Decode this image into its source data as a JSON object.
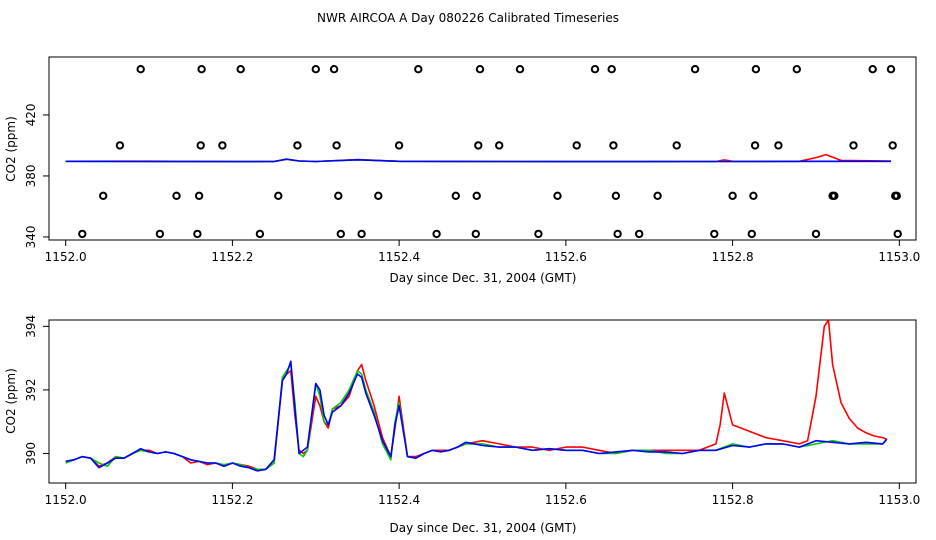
{
  "title": "NWR AIRCOA A  Day 080226  Calibrated Timeseries",
  "colors": {
    "red": "#ff0000",
    "green": "#00cc00",
    "blue": "#0000ff",
    "black": "#000000"
  },
  "chart_data": [
    {
      "type": "scatter",
      "xlabel": "Day since Dec. 31, 2004 (GMT)",
      "ylabel": "CO2 (ppm)",
      "xlim": [
        1151.98,
        1153.02
      ],
      "ylim": [
        338,
        458
      ],
      "xticks": [
        1152.0,
        1152.2,
        1152.4,
        1152.6,
        1152.8,
        1153.0
      ],
      "xtick_labels": [
        "1152.0",
        "1152.2",
        "1152.4",
        "1152.6",
        "1152.8",
        "1153.0"
      ],
      "yticks": [
        340,
        380,
        420
      ],
      "ytick_labels": [
        "340",
        "380",
        "420"
      ],
      "grid": false,
      "series": [
        {
          "color": "black",
          "marker": "circle",
          "points": [
            [
              1152.02,
              342
            ],
            [
              1152.045,
              367
            ],
            [
              1152.065,
              400
            ],
            [
              1152.09,
              450
            ],
            [
              1152.113,
              342
            ],
            [
              1152.133,
              367
            ],
            [
              1152.158,
              342
            ],
            [
              1152.16,
              367
            ],
            [
              1152.162,
              400
            ],
            [
              1152.163,
              450
            ],
            [
              1152.188,
              400
            ],
            [
              1152.21,
              450
            ],
            [
              1152.233,
              342
            ],
            [
              1152.255,
              367
            ],
            [
              1152.278,
              400
            ],
            [
              1152.3,
              450
            ],
            [
              1152.322,
              450
            ],
            [
              1152.325,
              400
            ],
            [
              1152.327,
              367
            ],
            [
              1152.33,
              342
            ],
            [
              1152.355,
              342
            ],
            [
              1152.375,
              367
            ],
            [
              1152.4,
              400
            ],
            [
              1152.423,
              450
            ],
            [
              1152.445,
              342
            ],
            [
              1152.468,
              367
            ],
            [
              1152.492,
              342
            ],
            [
              1152.493,
              367
            ],
            [
              1152.495,
              400
            ],
            [
              1152.497,
              450
            ],
            [
              1152.52,
              400
            ],
            [
              1152.545,
              450
            ],
            [
              1152.567,
              342
            ],
            [
              1152.59,
              367
            ],
            [
              1152.613,
              400
            ],
            [
              1152.635,
              450
            ],
            [
              1152.655,
              450
            ],
            [
              1152.657,
              400
            ],
            [
              1152.66,
              367
            ],
            [
              1152.662,
              342
            ],
            [
              1152.688,
              342
            ],
            [
              1152.71,
              367
            ],
            [
              1152.733,
              400
            ],
            [
              1152.755,
              450
            ],
            [
              1152.778,
              342
            ],
            [
              1152.8,
              367
            ],
            [
              1152.823,
              342
            ],
            [
              1152.825,
              367
            ],
            [
              1152.827,
              400
            ],
            [
              1152.828,
              450
            ],
            [
              1152.855,
              400
            ],
            [
              1152.877,
              450
            ],
            [
              1152.9,
              342
            ],
            [
              1152.92,
              367
            ],
            [
              1152.922,
              367
            ],
            [
              1152.945,
              400
            ],
            [
              1152.968,
              450
            ],
            [
              1152.99,
              450
            ],
            [
              1152.992,
              400
            ],
            [
              1152.995,
              367
            ],
            [
              1152.997,
              367
            ],
            [
              1152.998,
              342
            ]
          ]
        },
        {
          "color": "red",
          "marker": "line",
          "x": [
            1152.0,
            1152.1,
            1152.2,
            1152.25,
            1152.265,
            1152.28,
            1152.3,
            1152.35,
            1152.4,
            1152.5,
            1152.6,
            1152.7,
            1152.78,
            1152.79,
            1152.8,
            1152.88,
            1152.9,
            1152.912,
            1152.93,
            1152.99
          ],
          "y": [
            389.6,
            389.7,
            389.4,
            389.5,
            391.0,
            389.8,
            389.5,
            390.8,
            389.6,
            389.4,
            389.4,
            389.5,
            389.5,
            390.5,
            389.6,
            389.6,
            392.0,
            394.0,
            390.2,
            389.8
          ]
        },
        {
          "color": "green",
          "marker": "line",
          "x": [
            1152.0,
            1152.2,
            1152.25,
            1152.265,
            1152.28,
            1152.3,
            1152.35,
            1152.4,
            1152.6,
            1152.8,
            1152.9,
            1152.99
          ],
          "y": [
            389.6,
            389.4,
            389.5,
            391.0,
            389.8,
            389.5,
            390.6,
            389.6,
            389.4,
            389.5,
            389.6,
            389.6
          ]
        },
        {
          "color": "blue",
          "marker": "line",
          "x": [
            1152.0,
            1152.2,
            1152.25,
            1152.265,
            1152.28,
            1152.3,
            1152.35,
            1152.4,
            1152.6,
            1152.8,
            1152.9,
            1152.99
          ],
          "y": [
            389.6,
            389.4,
            389.5,
            391.0,
            389.8,
            389.5,
            390.6,
            389.6,
            389.4,
            389.5,
            389.6,
            389.6
          ]
        }
      ]
    },
    {
      "type": "line",
      "xlabel": "Day since Dec. 31, 2004 (GMT)",
      "ylabel": "CO2 (ppm)",
      "xlim": [
        1151.98,
        1153.02
      ],
      "ylim": [
        389.07,
        394.2
      ],
      "xticks": [
        1152.0,
        1152.2,
        1152.4,
        1152.6,
        1152.8,
        1153.0
      ],
      "xtick_labels": [
        "1152.0",
        "1152.2",
        "1152.4",
        "1152.6",
        "1152.8",
        "1153.0"
      ],
      "yticks": [
        390,
        392,
        394
      ],
      "ytick_labels": [
        "390",
        "392",
        "394"
      ],
      "grid": false,
      "series": [
        {
          "color": "red",
          "x": [
            1152.0,
            1152.01,
            1152.02,
            1152.03,
            1152.04,
            1152.05,
            1152.06,
            1152.07,
            1152.08,
            1152.09,
            1152.1,
            1152.11,
            1152.12,
            1152.13,
            1152.14,
            1152.15,
            1152.16,
            1152.17,
            1152.18,
            1152.19,
            1152.2,
            1152.21,
            1152.22,
            1152.23,
            1152.24,
            1152.25,
            1152.26,
            1152.265,
            1152.27,
            1152.275,
            1152.28,
            1152.285,
            1152.29,
            1152.3,
            1152.305,
            1152.31,
            1152.315,
            1152.32,
            1152.33,
            1152.34,
            1152.35,
            1152.355,
            1152.36,
            1152.37,
            1152.38,
            1152.39,
            1152.395,
            1152.4,
            1152.41,
            1152.42,
            1152.43,
            1152.44,
            1152.45,
            1152.46,
            1152.47,
            1152.48,
            1152.5,
            1152.52,
            1152.54,
            1152.56,
            1152.58,
            1152.6,
            1152.62,
            1152.64,
            1152.66,
            1152.68,
            1152.7,
            1152.72,
            1152.74,
            1152.76,
            1152.78,
            1152.785,
            1152.79,
            1152.8,
            1152.81,
            1152.82,
            1152.84,
            1152.86,
            1152.88,
            1152.89,
            1152.9,
            1152.91,
            1152.915,
            1152.92,
            1152.93,
            1152.94,
            1152.95,
            1152.96,
            1152.97,
            1152.98,
            1152.985
          ],
          "y": [
            389.75,
            389.8,
            389.9,
            389.85,
            389.6,
            389.7,
            389.9,
            389.85,
            390.0,
            390.1,
            390.1,
            390.0,
            390.05,
            390.0,
            389.9,
            389.7,
            389.75,
            389.65,
            389.7,
            389.6,
            389.7,
            389.65,
            389.6,
            389.5,
            389.5,
            389.7,
            392.3,
            392.5,
            392.6,
            391.2,
            390.1,
            390.0,
            390.1,
            391.8,
            391.5,
            391.0,
            390.8,
            391.4,
            391.5,
            391.8,
            392.6,
            392.8,
            392.3,
            391.5,
            390.5,
            389.9,
            390.8,
            391.8,
            389.9,
            389.9,
            390.0,
            390.1,
            390.1,
            390.1,
            390.2,
            390.3,
            390.4,
            390.3,
            390.2,
            390.2,
            390.1,
            390.2,
            390.2,
            390.1,
            390.0,
            390.1,
            390.1,
            390.1,
            390.1,
            390.1,
            390.3,
            390.9,
            391.9,
            390.9,
            390.8,
            390.7,
            390.5,
            390.4,
            390.3,
            390.4,
            391.8,
            394.0,
            394.2,
            392.8,
            391.6,
            391.1,
            390.8,
            390.65,
            390.55,
            390.5,
            390.45
          ]
        },
        {
          "color": "green",
          "x": [
            1152.0,
            1152.01,
            1152.02,
            1152.03,
            1152.04,
            1152.05,
            1152.06,
            1152.07,
            1152.08,
            1152.09,
            1152.1,
            1152.11,
            1152.12,
            1152.13,
            1152.14,
            1152.15,
            1152.16,
            1152.17,
            1152.18,
            1152.19,
            1152.2,
            1152.21,
            1152.22,
            1152.23,
            1152.24,
            1152.25,
            1152.26,
            1152.265,
            1152.27,
            1152.275,
            1152.28,
            1152.285,
            1152.29,
            1152.3,
            1152.305,
            1152.31,
            1152.315,
            1152.32,
            1152.33,
            1152.34,
            1152.35,
            1152.355,
            1152.36,
            1152.37,
            1152.38,
            1152.39,
            1152.395,
            1152.4,
            1152.41,
            1152.42,
            1152.43,
            1152.44,
            1152.45,
            1152.46,
            1152.47,
            1152.48,
            1152.5,
            1152.52,
            1152.54,
            1152.56,
            1152.58,
            1152.6,
            1152.62,
            1152.64,
            1152.66,
            1152.68,
            1152.7,
            1152.72,
            1152.74,
            1152.76,
            1152.78,
            1152.8,
            1152.82,
            1152.84,
            1152.86,
            1152.88,
            1152.9,
            1152.92,
            1152.94,
            1152.96,
            1152.98,
            1152.985
          ],
          "y": [
            389.7,
            389.8,
            389.9,
            389.85,
            389.7,
            389.6,
            389.9,
            389.85,
            390.0,
            390.1,
            390.05,
            390.0,
            390.05,
            390.0,
            389.9,
            389.8,
            389.75,
            389.7,
            389.7,
            389.65,
            389.7,
            389.65,
            389.55,
            389.5,
            389.5,
            389.7,
            392.4,
            392.6,
            392.8,
            391.6,
            390.0,
            389.9,
            390.1,
            392.2,
            391.8,
            391.0,
            390.9,
            391.4,
            391.6,
            392.0,
            392.6,
            392.5,
            392.0,
            391.3,
            390.3,
            389.8,
            391.0,
            391.6,
            389.9,
            389.85,
            390.0,
            390.1,
            390.05,
            390.1,
            390.2,
            390.3,
            390.3,
            390.2,
            390.2,
            390.1,
            390.15,
            390.1,
            390.1,
            390.0,
            390.0,
            390.1,
            390.1,
            390.0,
            390.0,
            390.1,
            390.1,
            390.3,
            390.2,
            390.3,
            390.3,
            390.2,
            390.3,
            390.4,
            390.3,
            390.3,
            390.3,
            390.45
          ]
        },
        {
          "color": "blue",
          "x": [
            1152.0,
            1152.01,
            1152.02,
            1152.03,
            1152.04,
            1152.05,
            1152.06,
            1152.07,
            1152.08,
            1152.09,
            1152.1,
            1152.11,
            1152.12,
            1152.13,
            1152.14,
            1152.15,
            1152.16,
            1152.17,
            1152.18,
            1152.19,
            1152.2,
            1152.21,
            1152.22,
            1152.23,
            1152.24,
            1152.25,
            1152.26,
            1152.265,
            1152.27,
            1152.275,
            1152.28,
            1152.285,
            1152.29,
            1152.3,
            1152.305,
            1152.31,
            1152.315,
            1152.32,
            1152.33,
            1152.34,
            1152.35,
            1152.355,
            1152.36,
            1152.37,
            1152.38,
            1152.39,
            1152.395,
            1152.4,
            1152.41,
            1152.42,
            1152.43,
            1152.44,
            1152.45,
            1152.46,
            1152.47,
            1152.48,
            1152.5,
            1152.52,
            1152.54,
            1152.56,
            1152.58,
            1152.6,
            1152.62,
            1152.64,
            1152.66,
            1152.68,
            1152.7,
            1152.72,
            1152.74,
            1152.76,
            1152.78,
            1152.8,
            1152.82,
            1152.84,
            1152.86,
            1152.88,
            1152.9,
            1152.92,
            1152.94,
            1152.96,
            1152.98,
            1152.985
          ],
          "y": [
            389.75,
            389.8,
            389.9,
            389.85,
            389.55,
            389.7,
            389.85,
            389.85,
            390.0,
            390.15,
            390.05,
            390.0,
            390.05,
            390.0,
            389.9,
            389.8,
            389.75,
            389.7,
            389.7,
            389.6,
            389.7,
            389.6,
            389.55,
            389.45,
            389.5,
            389.8,
            392.3,
            392.5,
            392.9,
            391.4,
            390.0,
            390.1,
            390.2,
            392.2,
            392.0,
            391.2,
            390.9,
            391.3,
            391.5,
            391.9,
            392.5,
            392.4,
            391.9,
            391.2,
            390.4,
            389.9,
            390.9,
            391.5,
            389.9,
            389.85,
            390.0,
            390.1,
            390.05,
            390.1,
            390.2,
            390.35,
            390.25,
            390.2,
            390.2,
            390.1,
            390.15,
            390.1,
            390.1,
            390.0,
            390.05,
            390.1,
            390.05,
            390.05,
            390.0,
            390.1,
            390.1,
            390.25,
            390.2,
            390.3,
            390.3,
            390.2,
            390.4,
            390.35,
            390.3,
            390.35,
            390.3,
            390.45
          ]
        }
      ]
    }
  ]
}
